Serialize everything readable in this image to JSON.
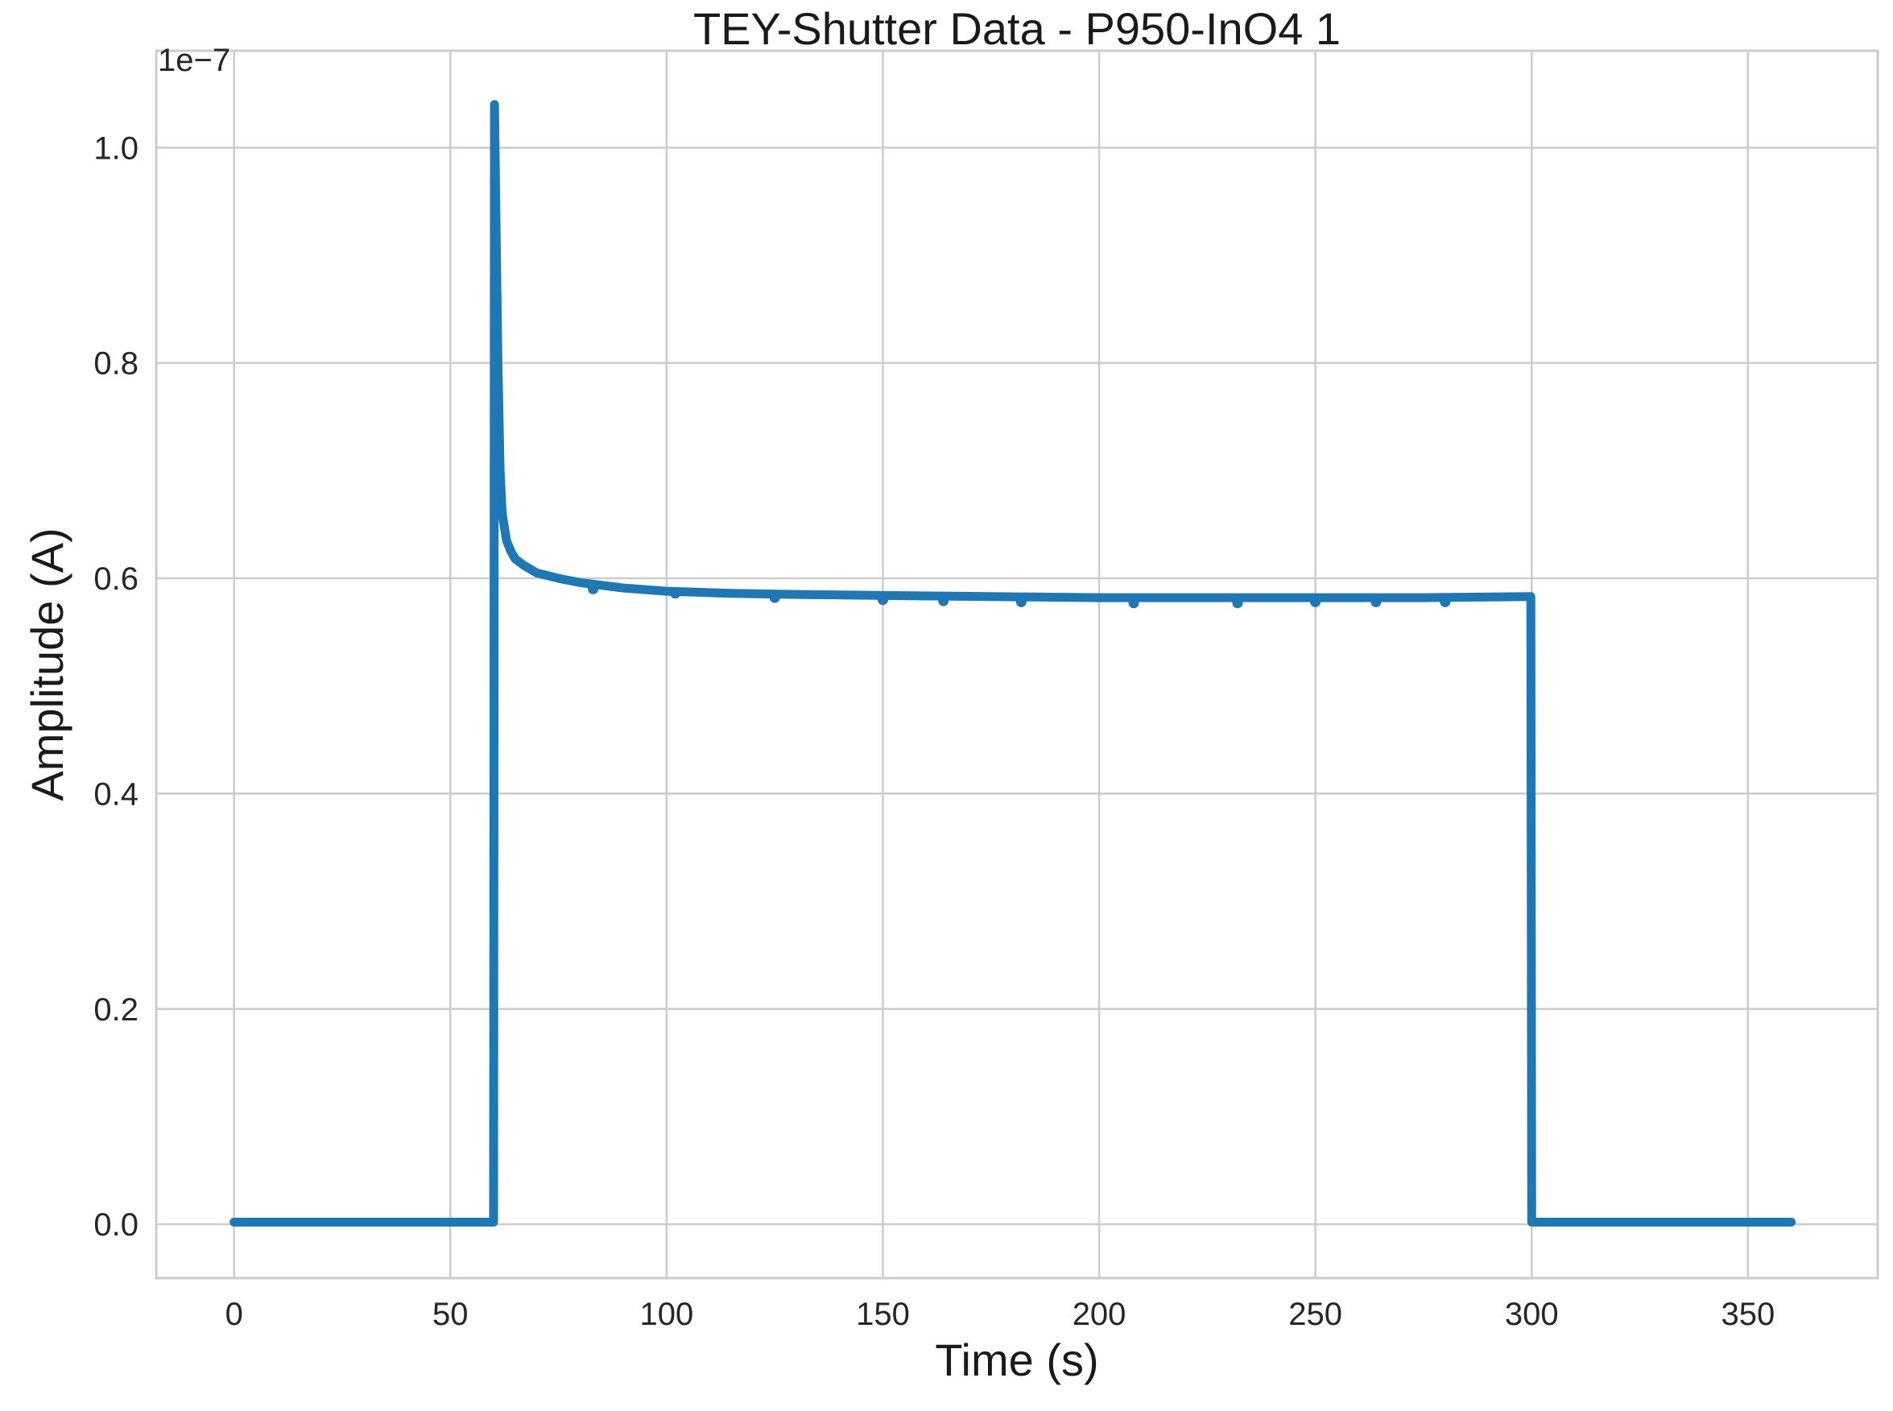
{
  "chart_data": {
    "type": "line",
    "title": "TEY-Shutter Data - P950-InO4 1",
    "xlabel": "Time (s)",
    "ylabel": "Amplitude (A)",
    "y_offset_label": "1e−7",
    "xlim": [
      -18,
      380
    ],
    "ylim": [
      -0.05,
      1.09
    ],
    "xticks": [
      0,
      50,
      100,
      150,
      200,
      250,
      300,
      350
    ],
    "xtick_labels": [
      "0",
      "50",
      "100",
      "150",
      "200",
      "250",
      "300",
      "350"
    ],
    "yticks": [
      0.0,
      0.2,
      0.4,
      0.6,
      0.8,
      1.0
    ],
    "ytick_labels": [
      "0.0",
      "0.2",
      "0.4",
      "0.6",
      "0.8",
      "1.0"
    ],
    "grid": true,
    "series": [
      {
        "color": "#1f77b4",
        "x": [
          0,
          60,
          60.2,
          60.5,
          61,
          61.5,
          62,
          63,
          64,
          65,
          67,
          70,
          75,
          80,
          90,
          100,
          115,
          130,
          150,
          175,
          200,
          225,
          250,
          275,
          299.8,
          300,
          360
        ],
        "y": [
          0.002,
          0.002,
          1.04,
          0.95,
          0.8,
          0.7,
          0.66,
          0.635,
          0.625,
          0.618,
          0.612,
          0.605,
          0.6,
          0.596,
          0.591,
          0.588,
          0.586,
          0.585,
          0.584,
          0.583,
          0.582,
          0.582,
          0.582,
          0.582,
          0.583,
          0.002,
          0.002
        ]
      }
    ],
    "dips": {
      "x": [
        83,
        102,
        125,
        150,
        164,
        182,
        208,
        232,
        250,
        264,
        280
      ],
      "y": [
        0.59,
        0.586,
        0.582,
        0.58,
        0.579,
        0.578,
        0.577,
        0.577,
        0.578,
        0.578,
        0.578
      ]
    }
  }
}
